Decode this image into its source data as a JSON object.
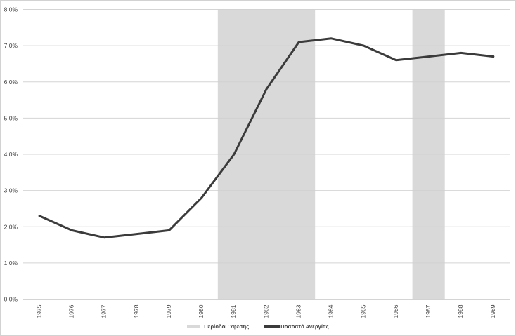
{
  "chart_data": {
    "type": "line",
    "x": [
      1975,
      1976,
      1977,
      1978,
      1979,
      1980,
      1981,
      1982,
      1983,
      1984,
      1985,
      1986,
      1987,
      1988,
      1989
    ],
    "series": [
      {
        "name": "Ποσοστό Ανεργίας",
        "values": [
          2.3,
          1.9,
          1.7,
          1.8,
          1.9,
          2.8,
          4.0,
          5.8,
          7.1,
          7.2,
          7.0,
          6.6,
          6.7,
          6.8,
          6.7
        ]
      }
    ],
    "bands": [
      {
        "name": "Περίοδοι Ύφεσης",
        "from": 1981,
        "to": 1983
      },
      {
        "name": "Περίοδοι Ύφεσης",
        "from": 1987,
        "to": 1987
      }
    ],
    "title": "",
    "xlabel": "",
    "ylabel": "",
    "ylim": [
      0,
      8
    ],
    "ytick_step": 1,
    "ytick_labels": [
      "0.0%",
      "1.0%",
      "2.0%",
      "3.0%",
      "4.0%",
      "5.0%",
      "6.0%",
      "7.0%",
      "8.0%"
    ],
    "xtick_labels": [
      "1975",
      "1976",
      "1977",
      "1978",
      "1979",
      "1980",
      "1981",
      "1982",
      "1983",
      "1984",
      "1985",
      "1986",
      "1987",
      "1988",
      "1989"
    ],
    "xtick_rotation_deg": -90,
    "grid": true,
    "legend_position": "bottom-center",
    "legend": [
      "Περίοδοι Ύφεσης",
      "Ποσοστό Ανεργίας"
    ],
    "colors": {
      "line": "#3b3b3b",
      "band": "#d9d9d9",
      "gridline": "#cfcfcf",
      "axis_text": "#3f3f3f",
      "frame_border": "#d2d2d2",
      "background": "#ffffff"
    }
  }
}
